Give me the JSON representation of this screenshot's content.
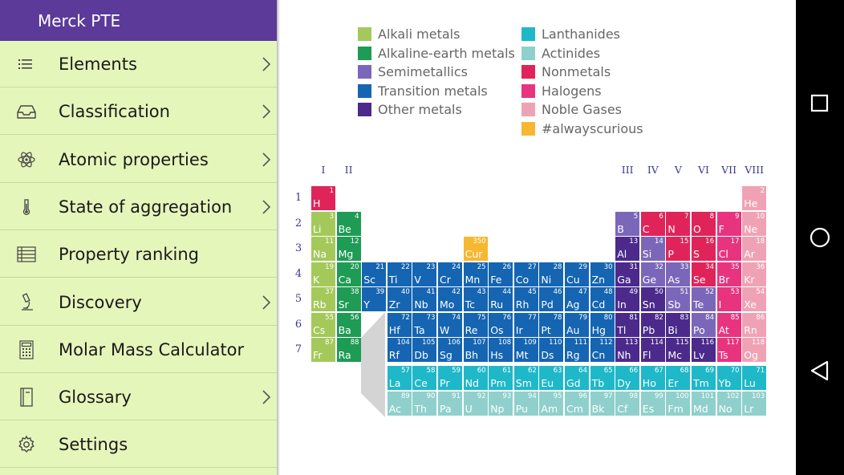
{
  "drawer": {
    "title": "Merck PTE",
    "items": [
      {
        "label": "Elements",
        "icon": "list-icon",
        "chevron": true
      },
      {
        "label": "Classification",
        "icon": "inbox-tray-icon",
        "chevron": true
      },
      {
        "label": "Atomic properties",
        "icon": "atom-icon",
        "chevron": true
      },
      {
        "label": "State of aggregation",
        "icon": "thermometer-icon",
        "chevron": true
      },
      {
        "label": "Property ranking",
        "icon": "table-list-icon",
        "chevron": false
      },
      {
        "label": "Discovery",
        "icon": "microscope-icon",
        "chevron": true
      },
      {
        "label": "Molar Mass Calculator",
        "icon": "calculator-icon",
        "chevron": false
      },
      {
        "label": "Glossary",
        "icon": "book-icon",
        "chevron": true
      },
      {
        "label": "Settings",
        "icon": "gear-icon",
        "chevron": false
      }
    ]
  },
  "legend": [
    {
      "label": "Alkali metals",
      "color": "#a4c95a"
    },
    {
      "label": "Alkaline-earth metals",
      "color": "#1e9b55"
    },
    {
      "label": "Semimetallics",
      "color": "#7b67b9"
    },
    {
      "label": "Transition metals",
      "color": "#1565b2"
    },
    {
      "label": "Other metals",
      "color": "#4b2a8c"
    },
    {
      "label": "Lanthanides",
      "color": "#1fb8c8"
    },
    {
      "label": "Actinides",
      "color": "#8fd0cc"
    },
    {
      "label": "Nonmetals",
      "color": "#e0245a"
    },
    {
      "label": "Halogens",
      "color": "#e8347f"
    },
    {
      "label": "Noble Gases",
      "color": "#f0a2b5"
    },
    {
      "label": "#alwayscurious",
      "color": "#f7b731"
    }
  ],
  "groups": [
    "I",
    "II",
    "III",
    "IV",
    "V",
    "VI",
    "VII",
    "VIII"
  ],
  "periods": [
    "1",
    "2",
    "3",
    "4",
    "5",
    "6",
    "7"
  ],
  "elements": [
    {
      "n": "1",
      "s": "H",
      "r": 1,
      "c": 1,
      "cat": 7
    },
    {
      "n": "2",
      "s": "He",
      "r": 1,
      "c": 18,
      "cat": 9
    },
    {
      "n": "3",
      "s": "Li",
      "r": 2,
      "c": 1,
      "cat": 0
    },
    {
      "n": "4",
      "s": "Be",
      "r": 2,
      "c": 2,
      "cat": 1
    },
    {
      "n": "5",
      "s": "B",
      "r": 2,
      "c": 13,
      "cat": 2
    },
    {
      "n": "6",
      "s": "C",
      "r": 2,
      "c": 14,
      "cat": 7
    },
    {
      "n": "7",
      "s": "N",
      "r": 2,
      "c": 15,
      "cat": 7
    },
    {
      "n": "8",
      "s": "O",
      "r": 2,
      "c": 16,
      "cat": 7
    },
    {
      "n": "9",
      "s": "F",
      "r": 2,
      "c": 17,
      "cat": 8
    },
    {
      "n": "10",
      "s": "Ne",
      "r": 2,
      "c": 18,
      "cat": 9
    },
    {
      "n": "11",
      "s": "Na",
      "r": 3,
      "c": 1,
      "cat": 0
    },
    {
      "n": "12",
      "s": "Mg",
      "r": 3,
      "c": 2,
      "cat": 1
    },
    {
      "n": "350",
      "s": "Cur",
      "r": 3,
      "c": 7,
      "cat": 10
    },
    {
      "n": "13",
      "s": "Al",
      "r": 3,
      "c": 13,
      "cat": 4
    },
    {
      "n": "14",
      "s": "Si",
      "r": 3,
      "c": 14,
      "cat": 2
    },
    {
      "n": "15",
      "s": "P",
      "r": 3,
      "c": 15,
      "cat": 7
    },
    {
      "n": "16",
      "s": "S",
      "r": 3,
      "c": 16,
      "cat": 7
    },
    {
      "n": "17",
      "s": "Cl",
      "r": 3,
      "c": 17,
      "cat": 8
    },
    {
      "n": "18",
      "s": "Ar",
      "r": 3,
      "c": 18,
      "cat": 9
    },
    {
      "n": "19",
      "s": "K",
      "r": 4,
      "c": 1,
      "cat": 0
    },
    {
      "n": "20",
      "s": "Ca",
      "r": 4,
      "c": 2,
      "cat": 1
    },
    {
      "n": "21",
      "s": "Sc",
      "r": 4,
      "c": 3,
      "cat": 3
    },
    {
      "n": "22",
      "s": "Ti",
      "r": 4,
      "c": 4,
      "cat": 3
    },
    {
      "n": "23",
      "s": "V",
      "r": 4,
      "c": 5,
      "cat": 3
    },
    {
      "n": "24",
      "s": "Cr",
      "r": 4,
      "c": 6,
      "cat": 3
    },
    {
      "n": "25",
      "s": "Mn",
      "r": 4,
      "c": 7,
      "cat": 3
    },
    {
      "n": "26",
      "s": "Fe",
      "r": 4,
      "c": 8,
      "cat": 3
    },
    {
      "n": "27",
      "s": "Co",
      "r": 4,
      "c": 9,
      "cat": 3
    },
    {
      "n": "28",
      "s": "Ni",
      "r": 4,
      "c": 10,
      "cat": 3
    },
    {
      "n": "29",
      "s": "Cu",
      "r": 4,
      "c": 11,
      "cat": 3
    },
    {
      "n": "30",
      "s": "Zn",
      "r": 4,
      "c": 12,
      "cat": 3
    },
    {
      "n": "31",
      "s": "Ga",
      "r": 4,
      "c": 13,
      "cat": 4
    },
    {
      "n": "32",
      "s": "Ge",
      "r": 4,
      "c": 14,
      "cat": 2
    },
    {
      "n": "33",
      "s": "As",
      "r": 4,
      "c": 15,
      "cat": 2
    },
    {
      "n": "34",
      "s": "Se",
      "r": 4,
      "c": 16,
      "cat": 7
    },
    {
      "n": "35",
      "s": "Br",
      "r": 4,
      "c": 17,
      "cat": 8
    },
    {
      "n": "36",
      "s": "Kr",
      "r": 4,
      "c": 18,
      "cat": 9
    },
    {
      "n": "37",
      "s": "Rb",
      "r": 5,
      "c": 1,
      "cat": 0
    },
    {
      "n": "38",
      "s": "Sr",
      "r": 5,
      "c": 2,
      "cat": 1
    },
    {
      "n": "39",
      "s": "Y",
      "r": 5,
      "c": 3,
      "cat": 3
    },
    {
      "n": "40",
      "s": "Zr",
      "r": 5,
      "c": 4,
      "cat": 3
    },
    {
      "n": "41",
      "s": "Nb",
      "r": 5,
      "c": 5,
      "cat": 3
    },
    {
      "n": "42",
      "s": "Mo",
      "r": 5,
      "c": 6,
      "cat": 3
    },
    {
      "n": "43",
      "s": "Tc",
      "r": 5,
      "c": 7,
      "cat": 3
    },
    {
      "n": "44",
      "s": "Ru",
      "r": 5,
      "c": 8,
      "cat": 3
    },
    {
      "n": "45",
      "s": "Rh",
      "r": 5,
      "c": 9,
      "cat": 3
    },
    {
      "n": "46",
      "s": "Pd",
      "r": 5,
      "c": 10,
      "cat": 3
    },
    {
      "n": "47",
      "s": "Ag",
      "r": 5,
      "c": 11,
      "cat": 3
    },
    {
      "n": "48",
      "s": "Cd",
      "r": 5,
      "c": 12,
      "cat": 3
    },
    {
      "n": "49",
      "s": "In",
      "r": 5,
      "c": 13,
      "cat": 4
    },
    {
      "n": "50",
      "s": "Sn",
      "r": 5,
      "c": 14,
      "cat": 4
    },
    {
      "n": "51",
      "s": "Sb",
      "r": 5,
      "c": 15,
      "cat": 2
    },
    {
      "n": "52",
      "s": "Te",
      "r": 5,
      "c": 16,
      "cat": 2
    },
    {
      "n": "53",
      "s": "I",
      "r": 5,
      "c": 17,
      "cat": 8
    },
    {
      "n": "54",
      "s": "Xe",
      "r": 5,
      "c": 18,
      "cat": 9
    },
    {
      "n": "55",
      "s": "Cs",
      "r": 6,
      "c": 1,
      "cat": 0
    },
    {
      "n": "56",
      "s": "Ba",
      "r": 6,
      "c": 2,
      "cat": 1
    },
    {
      "n": "72",
      "s": "Hf",
      "r": 6,
      "c": 4,
      "cat": 3
    },
    {
      "n": "73",
      "s": "Ta",
      "r": 6,
      "c": 5,
      "cat": 3
    },
    {
      "n": "74",
      "s": "W",
      "r": 6,
      "c": 6,
      "cat": 3
    },
    {
      "n": "75",
      "s": "Re",
      "r": 6,
      "c": 7,
      "cat": 3
    },
    {
      "n": "76",
      "s": "Os",
      "r": 6,
      "c": 8,
      "cat": 3
    },
    {
      "n": "77",
      "s": "Ir",
      "r": 6,
      "c": 9,
      "cat": 3
    },
    {
      "n": "78",
      "s": "Pt",
      "r": 6,
      "c": 10,
      "cat": 3
    },
    {
      "n": "79",
      "s": "Au",
      "r": 6,
      "c": 11,
      "cat": 3
    },
    {
      "n": "80",
      "s": "Hg",
      "r": 6,
      "c": 12,
      "cat": 3
    },
    {
      "n": "81",
      "s": "Tl",
      "r": 6,
      "c": 13,
      "cat": 4
    },
    {
      "n": "82",
      "s": "Pb",
      "r": 6,
      "c": 14,
      "cat": 4
    },
    {
      "n": "83",
      "s": "Bi",
      "r": 6,
      "c": 15,
      "cat": 4
    },
    {
      "n": "84",
      "s": "Po",
      "r": 6,
      "c": 16,
      "cat": 2
    },
    {
      "n": "85",
      "s": "At",
      "r": 6,
      "c": 17,
      "cat": 8
    },
    {
      "n": "86",
      "s": "Rn",
      "r": 6,
      "c": 18,
      "cat": 9
    },
    {
      "n": "87",
      "s": "Fr",
      "r": 7,
      "c": 1,
      "cat": 0
    },
    {
      "n": "88",
      "s": "Ra",
      "r": 7,
      "c": 2,
      "cat": 1
    },
    {
      "n": "104",
      "s": "Rf",
      "r": 7,
      "c": 4,
      "cat": 3
    },
    {
      "n": "105",
      "s": "Db",
      "r": 7,
      "c": 5,
      "cat": 3
    },
    {
      "n": "106",
      "s": "Sg",
      "r": 7,
      "c": 6,
      "cat": 3
    },
    {
      "n": "107",
      "s": "Bh",
      "r": 7,
      "c": 7,
      "cat": 3
    },
    {
      "n": "108",
      "s": "Hs",
      "r": 7,
      "c": 8,
      "cat": 3
    },
    {
      "n": "109",
      "s": "Mt",
      "r": 7,
      "c": 9,
      "cat": 3
    },
    {
      "n": "110",
      "s": "Ds",
      "r": 7,
      "c": 10,
      "cat": 3
    },
    {
      "n": "111",
      "s": "Rg",
      "r": 7,
      "c": 11,
      "cat": 3
    },
    {
      "n": "112",
      "s": "Cn",
      "r": 7,
      "c": 12,
      "cat": 3
    },
    {
      "n": "113",
      "s": "Nh",
      "r": 7,
      "c": 13,
      "cat": 4
    },
    {
      "n": "114",
      "s": "Fl",
      "r": 7,
      "c": 14,
      "cat": 4
    },
    {
      "n": "115",
      "s": "Mc",
      "r": 7,
      "c": 15,
      "cat": 4
    },
    {
      "n": "116",
      "s": "Lv",
      "r": 7,
      "c": 16,
      "cat": 4
    },
    {
      "n": "117",
      "s": "Ts",
      "r": 7,
      "c": 17,
      "cat": 8
    },
    {
      "n": "118",
      "s": "Og",
      "r": 7,
      "c": 18,
      "cat": 9
    },
    {
      "n": "57",
      "s": "La",
      "r": 8,
      "c": 4,
      "cat": 5
    },
    {
      "n": "58",
      "s": "Ce",
      "r": 8,
      "c": 5,
      "cat": 5
    },
    {
      "n": "59",
      "s": "Pr",
      "r": 8,
      "c": 6,
      "cat": 5
    },
    {
      "n": "60",
      "s": "Nd",
      "r": 8,
      "c": 7,
      "cat": 5
    },
    {
      "n": "61",
      "s": "Pm",
      "r": 8,
      "c": 8,
      "cat": 5
    },
    {
      "n": "62",
      "s": "Sm",
      "r": 8,
      "c": 9,
      "cat": 5
    },
    {
      "n": "63",
      "s": "Eu",
      "r": 8,
      "c": 10,
      "cat": 5
    },
    {
      "n": "64",
      "s": "Gd",
      "r": 8,
      "c": 11,
      "cat": 5
    },
    {
      "n": "65",
      "s": "Tb",
      "r": 8,
      "c": 12,
      "cat": 5
    },
    {
      "n": "66",
      "s": "Dy",
      "r": 8,
      "c": 13,
      "cat": 5
    },
    {
      "n": "67",
      "s": "Ho",
      "r": 8,
      "c": 14,
      "cat": 5
    },
    {
      "n": "68",
      "s": "Er",
      "r": 8,
      "c": 15,
      "cat": 5
    },
    {
      "n": "69",
      "s": "Tm",
      "r": 8,
      "c": 16,
      "cat": 5
    },
    {
      "n": "70",
      "s": "Yb",
      "r": 8,
      "c": 17,
      "cat": 5
    },
    {
      "n": "71",
      "s": "Lu",
      "r": 8,
      "c": 18,
      "cat": 5
    },
    {
      "n": "89",
      "s": "Ac",
      "r": 9,
      "c": 4,
      "cat": 6
    },
    {
      "n": "90",
      "s": "Th",
      "r": 9,
      "c": 5,
      "cat": 6
    },
    {
      "n": "91",
      "s": "Pa",
      "r": 9,
      "c": 6,
      "cat": 6
    },
    {
      "n": "92",
      "s": "U",
      "r": 9,
      "c": 7,
      "cat": 6
    },
    {
      "n": "93",
      "s": "Np",
      "r": 9,
      "c": 8,
      "cat": 6
    },
    {
      "n": "94",
      "s": "Pu",
      "r": 9,
      "c": 9,
      "cat": 6
    },
    {
      "n": "95",
      "s": "Am",
      "r": 9,
      "c": 10,
      "cat": 6
    },
    {
      "n": "96",
      "s": "Cm",
      "r": 9,
      "c": 11,
      "cat": 6
    },
    {
      "n": "97",
      "s": "Bk",
      "r": 9,
      "c": 12,
      "cat": 6
    },
    {
      "n": "98",
      "s": "Cf",
      "r": 9,
      "c": 13,
      "cat": 6
    },
    {
      "n": "99",
      "s": "Es",
      "r": 9,
      "c": 14,
      "cat": 6
    },
    {
      "n": "100",
      "s": "Fm",
      "r": 9,
      "c": 15,
      "cat": 6
    },
    {
      "n": "101",
      "s": "Md",
      "r": 9,
      "c": 16,
      "cat": 6
    },
    {
      "n": "102",
      "s": "No",
      "r": 9,
      "c": 17,
      "cat": 6
    },
    {
      "n": "103",
      "s": "Lr",
      "r": 9,
      "c": 18,
      "cat": 6
    }
  ],
  "navbar": {
    "buttons": [
      "recents-icon",
      "home-icon",
      "back-icon"
    ]
  }
}
